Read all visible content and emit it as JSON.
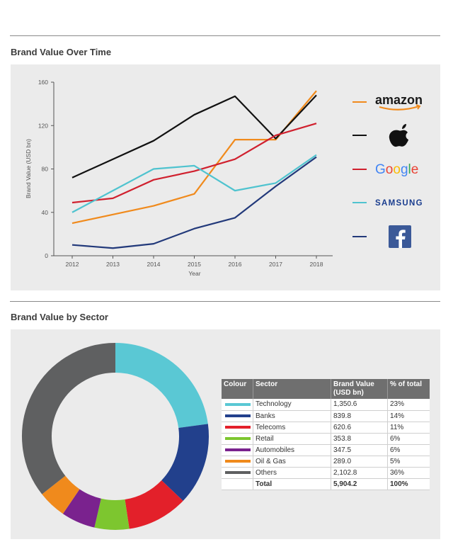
{
  "sections": {
    "line_title": "Brand Value Over Time",
    "donut_title": "Brand Value by Sector"
  },
  "legend": [
    {
      "brand": "amazon",
      "color": "#f08a1c"
    },
    {
      "brand": "apple",
      "color": "#111111"
    },
    {
      "brand": "Google",
      "color": "#d0202e"
    },
    {
      "brand": "SAMSUNG",
      "color": "#4fc3cf"
    },
    {
      "brand": "facebook",
      "color": "#22397a"
    }
  ],
  "chart_data": [
    {
      "type": "line",
      "title": "Brand Value Over Time",
      "xlabel": "Year",
      "ylabel": "Brand Value (USD bn)",
      "x": [
        "2012",
        "2013",
        "2014",
        "2015",
        "2016",
        "2017",
        "2018"
      ],
      "ylim": [
        0,
        160
      ],
      "yticks": [
        "0",
        "40",
        "80",
        "120",
        "160"
      ],
      "grid": false,
      "series": [
        {
          "name": "Amazon",
          "color": "#f08a1c",
          "values": [
            30,
            38,
            46,
            57,
            107,
            107,
            152
          ]
        },
        {
          "name": "Apple",
          "color": "#111111",
          "values": [
            72,
            89,
            106,
            130,
            147,
            108,
            148
          ]
        },
        {
          "name": "Google",
          "color": "#d0202e",
          "values": [
            49,
            53,
            70,
            78,
            89,
            111,
            122
          ]
        },
        {
          "name": "Samsung",
          "color": "#4fc3cf",
          "values": [
            40,
            60,
            80,
            83,
            60,
            67,
            93
          ]
        },
        {
          "name": "Facebook",
          "color": "#22397a",
          "values": [
            10,
            7,
            11,
            25,
            35,
            64,
            91
          ]
        }
      ]
    },
    {
      "type": "pie",
      "title": "Brand Value by Sector",
      "donut": true,
      "categories": [
        "Technology",
        "Banks",
        "Telecoms",
        "Retail",
        "Automobiles",
        "Oil & Gas",
        "Others"
      ],
      "values": [
        1350.6,
        839.8,
        620.6,
        353.8,
        347.5,
        289.0,
        2102.8
      ],
      "colors": [
        "#5ac8d4",
        "#22408c",
        "#e3202a",
        "#7dc62f",
        "#7a228e",
        "#f08a1c",
        "#5f6061"
      ]
    }
  ],
  "table": {
    "headers": {
      "colour": "Colour",
      "sector": "Sector",
      "value": "Brand Value (USD bn)",
      "pct": "% of total"
    },
    "rows": [
      {
        "sector": "Technology",
        "value": "1,350.6",
        "pct": "23%",
        "color": "#5ac8d4"
      },
      {
        "sector": "Banks",
        "value": "839.8",
        "pct": "14%",
        "color": "#22408c"
      },
      {
        "sector": "Telecoms",
        "value": "620.6",
        "pct": "11%",
        "color": "#e3202a"
      },
      {
        "sector": "Retail",
        "value": "353.8",
        "pct": "6%",
        "color": "#7dc62f"
      },
      {
        "sector": "Automobiles",
        "value": "347.5",
        "pct": "6%",
        "color": "#7a228e"
      },
      {
        "sector": "Oil & Gas",
        "value": "289.0",
        "pct": "5%",
        "color": "#f08a1c"
      },
      {
        "sector": "Others",
        "value": "2,102.8",
        "pct": "36%",
        "color": "#5f6061"
      }
    ],
    "total": {
      "sector": "Total",
      "value": "5,904.2",
      "pct": "100%"
    }
  }
}
